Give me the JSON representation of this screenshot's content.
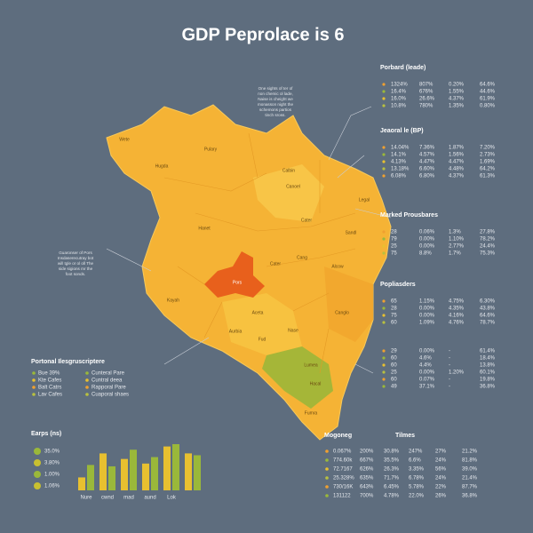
{
  "title": "GDP Peprolace is 6",
  "map": {
    "regions": [
      "Wete",
      "Hugda",
      "Pulary",
      "Calbin",
      "Canoel",
      "Legal",
      "Cater",
      "Hanet",
      "Cater",
      "Cang",
      "Pors",
      "Alcow",
      "Kayah",
      "Canglo",
      "Aceta",
      "Aurbia",
      "Fud",
      "Nase",
      "Lumea",
      "Hacal",
      "Fumra",
      "Sandl"
    ],
    "annotations": [
      [
        "One sights of ter of",
        "non chemic ol lade,",
        "Naise is cheight we",
        "monasson night the",
        "schemons partios",
        "tinch sross."
      ],
      [
        "Guaronser of Pors",
        "Insdaserecutray bot",
        "will tgle or ol oll The",
        "side sigions mr the",
        "foot sonds."
      ]
    ]
  },
  "panels": [
    {
      "title": "Porbard (leade)",
      "rows": [
        [
          "1324%",
          "807%",
          "0.20%",
          "64.6%"
        ],
        [
          "16.4%",
          "676%",
          "1.55%",
          "44.6%"
        ],
        [
          "16.0%",
          "26.6%",
          "4.37%",
          "61.9%"
        ],
        [
          "10.8%",
          "780%",
          "1.35%",
          "0.80%"
        ]
      ]
    },
    {
      "title": "Jeaoral le (BP)",
      "rows": [
        [
          "14.04%",
          "7.36%",
          "1.87%",
          "7.20%"
        ],
        [
          "14.1%",
          "4.57%",
          "1.56%",
          "2.73%"
        ],
        [
          "4.13%",
          "4.47%",
          "4.47%",
          "1.69%"
        ],
        [
          "13.18%",
          "6.60%",
          "4.48%",
          "64.2%"
        ],
        [
          "6.08%",
          "6.80%",
          "4.37%",
          "61.3%"
        ]
      ]
    },
    {
      "title": "Marked Prousbares",
      "rows": [
        [
          "28",
          "0.06%",
          "1.3%",
          "27.8%"
        ],
        [
          "79",
          "0.00%",
          "1.10%",
          "78.2%"
        ],
        [
          "25",
          "0.00%",
          "2.77%",
          "24.4%"
        ],
        [
          "75",
          "8.8%",
          "1.7%",
          "75.3%"
        ]
      ]
    },
    {
      "title": "Popliasders",
      "rows": [
        [
          "65",
          "1.15%",
          "4.75%",
          "6.30%"
        ],
        [
          "28",
          "0.00%",
          "4.35%",
          "43.8%"
        ],
        [
          "75",
          "0.00%",
          "4.16%",
          "64.6%"
        ],
        [
          "60",
          "1.09%",
          "4.76%",
          "78.7%"
        ]
      ]
    },
    {
      "rows": [
        [
          "29",
          "0.00%",
          "-",
          "61.4%"
        ],
        [
          "60",
          "4.6%",
          "-",
          "18.4%"
        ],
        [
          "60",
          "4.4%",
          "-",
          "13.8%"
        ],
        [
          "25",
          "0.00%",
          "1.20%",
          "60.1%"
        ],
        [
          "60",
          "0.07%",
          "-",
          "19.8%"
        ],
        [
          "49",
          "37.1%",
          "-",
          "36.8%"
        ]
      ]
    }
  ],
  "legend": {
    "title": "Portonal Ilesgruscriptere",
    "items": [
      "Bue 39%",
      "Kte Cafes",
      "Balt Catrs",
      "Lav Cafes",
      "Cunteral Pare",
      "Cuntral deea",
      "Rapporal Pare",
      "Cuaporal shaes"
    ]
  },
  "chart_data": {
    "type": "bar",
    "title": "Earps (ns)",
    "legend_values": [
      "35.0%",
      "3.80%",
      "1.00%",
      "1.06%"
    ],
    "categories": [
      "Nure",
      "cwnd",
      "mad",
      "aund",
      "Lok",
      null
    ],
    "series": [
      {
        "color": "#e8c030",
        "values": [
          28,
          80,
          68,
          58,
          95,
          80
        ]
      },
      {
        "color": "#9ab83a",
        "values": [
          55,
          52,
          88,
          72,
          100,
          76
        ]
      }
    ],
    "ylim": [
      0,
      100
    ]
  },
  "bottom_table": {
    "headers": [
      "Mogoneg",
      "Tilmes"
    ],
    "rows": [
      [
        "0.067%",
        "200%",
        "30.8%",
        "247%",
        "27%",
        "21.2%"
      ],
      [
        "774.60k",
        "667%",
        "35.5%",
        "6.6%",
        "24%",
        "81.8%"
      ],
      [
        "72.7167",
        "626%",
        "26.3%",
        "3.35%",
        "56%",
        "39.0%"
      ],
      [
        "25.328%",
        "635%",
        "71.7%",
        "6.78%",
        "24%",
        "21.4%"
      ],
      [
        "730/16K",
        "643%",
        "6.45%",
        "5.78%",
        "22%",
        "87.7%"
      ],
      [
        "131122",
        "700%",
        "4.78%",
        "22.0%",
        "26%",
        "36.8%"
      ]
    ]
  }
}
